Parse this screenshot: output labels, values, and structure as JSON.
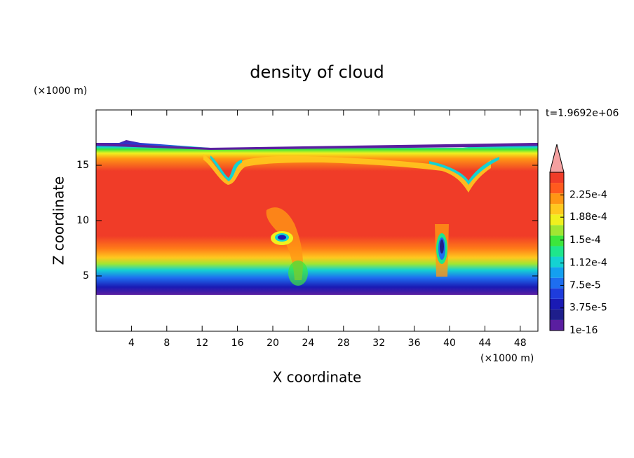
{
  "chart_data": {
    "type": "contour",
    "title": "density of cloud",
    "x_label": "X coordinate",
    "y_label": "Z coordinate",
    "x_unit": "(×1000 m)",
    "y_unit": "(×1000 m)",
    "time_label": "t=1.9692e+06",
    "xlim": [
      0,
      50
    ],
    "ylim": [
      0,
      20
    ],
    "xticks": [
      4,
      8,
      12,
      16,
      20,
      24,
      28,
      32,
      36,
      40,
      44,
      48
    ],
    "yticks": [
      5,
      10,
      15
    ],
    "colorbar": {
      "lim": [
        1e-16,
        0.0002625
      ],
      "ticks": [
        1e-16,
        {
          "value": 3.75e-05,
          "label": "3.75e-5"
        },
        {
          "value": 7.5e-05,
          "label": "7.5e-5"
        },
        {
          "value": 0.000112,
          "label": "1.12e-4"
        },
        {
          "value": 0.00015,
          "label": "1.5e-4"
        },
        {
          "value": 0.000188,
          "label": "1.88e-4"
        },
        {
          "value": 0.000225,
          "label": "2.25e-4"
        }
      ],
      "colors": [
        "#5a1ea0",
        "#1e1e8c",
        "#1a1ab4",
        "#1e3cdc",
        "#1e6ef0",
        "#14a0f0",
        "#14d2d2",
        "#1ee68c",
        "#3ce63c",
        "#a0e632",
        "#f0f01e",
        "#ffc81e",
        "#ff9614",
        "#ff5a1e",
        "#f03c28"
      ],
      "extend_color": "#f4a0a0"
    }
  }
}
